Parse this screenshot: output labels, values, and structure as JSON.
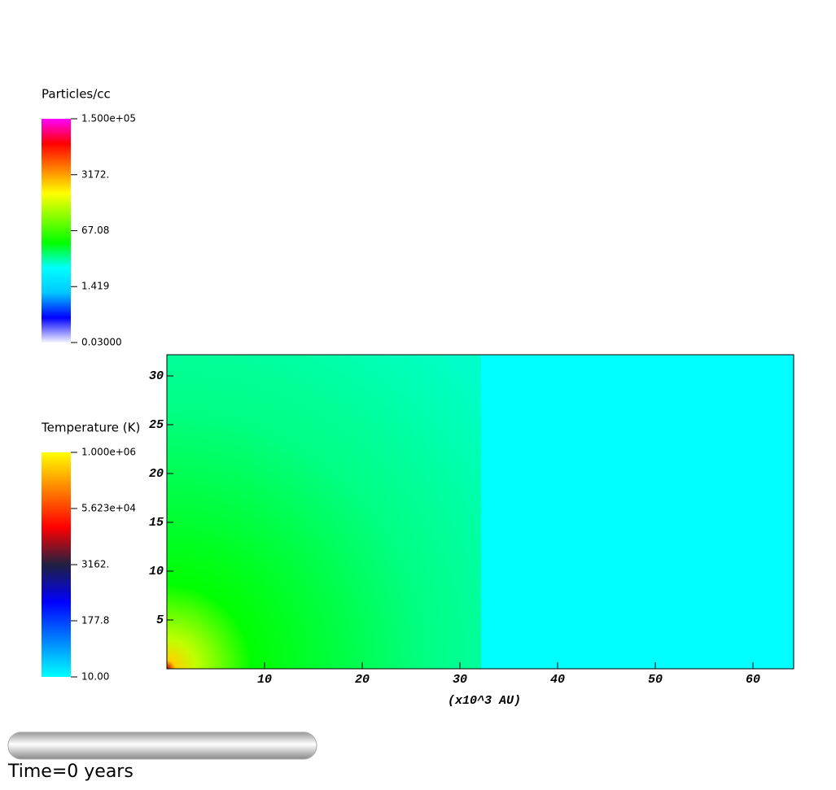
{
  "chart_data": {
    "type": "heatmap",
    "xlabel": "(x10^3 AU)",
    "xlim": [
      0,
      64
    ],
    "ylim": [
      0,
      32
    ],
    "xticks": [
      10,
      20,
      30,
      40,
      50,
      60
    ],
    "yticks": [
      5,
      10,
      15,
      20,
      25,
      30
    ],
    "colorbars": [
      {
        "title": "Particles/cc",
        "log_scale": true,
        "lim": [
          0.03,
          150000
        ],
        "colors": [
          "#f4f4ff",
          "#0000ff",
          "#00c8ff",
          "#00ffff",
          "#00ff00",
          "#80ff00",
          "#ffff00",
          "#ff8000",
          "#ff0000",
          "#ff00ff"
        ],
        "ticks": [
          {
            "value": 150000,
            "label": "1.500e+05"
          },
          {
            "value": 3172,
            "label": "3172."
          },
          67.08,
          1.419,
          {
            "value": 0.03,
            "label": "0.03000"
          }
        ]
      },
      {
        "title": "Temperature (K)",
        "log_scale": true,
        "lim": [
          10,
          1000000
        ],
        "colors": [
          "#00ffff",
          "#0080ff",
          "#0000ff",
          "#202040",
          "#ff0000",
          "#ff8000",
          "#ffff00"
        ],
        "ticks": [
          {
            "value": 1000000,
            "label": "1.000e+06"
          },
          {
            "value": 56230,
            "label": "5.623e+04"
          },
          {
            "value": 3162,
            "label": "3162."
          },
          177.8,
          {
            "value": 10,
            "label": "10.00"
          }
        ]
      }
    ],
    "time_label": "Time=0 years"
  }
}
